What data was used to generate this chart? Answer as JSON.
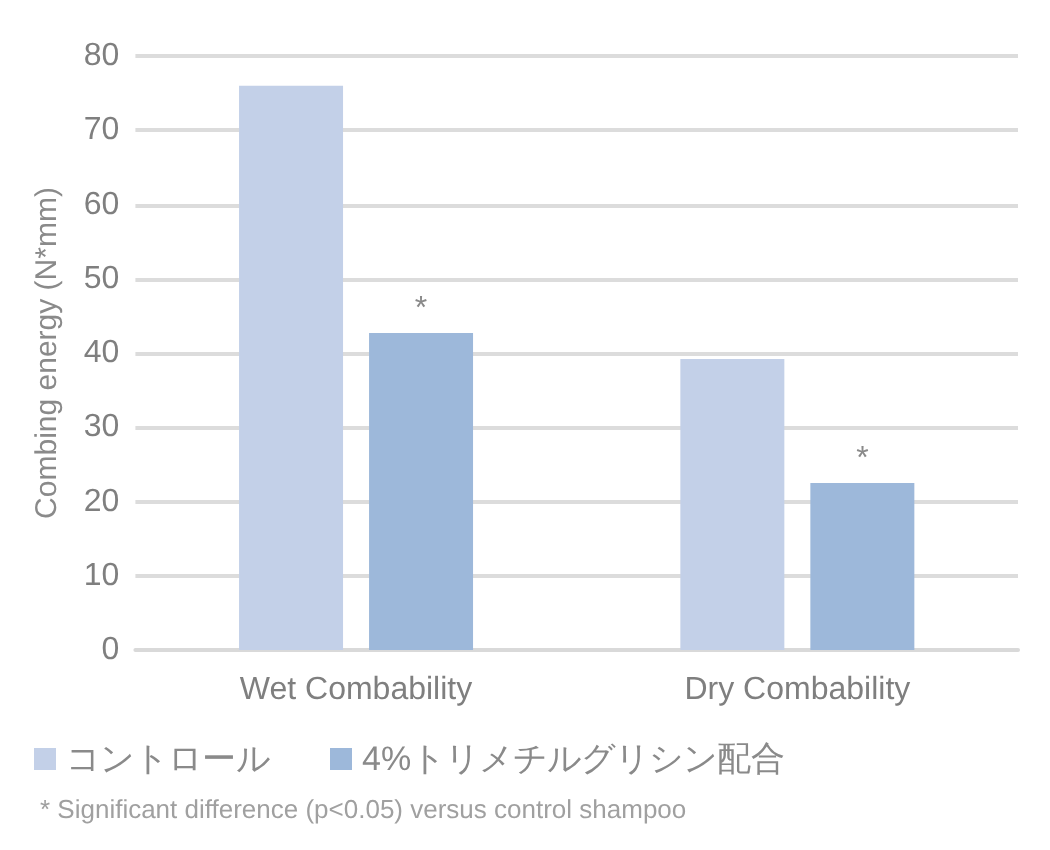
{
  "chart_data": {
    "type": "bar",
    "ylabel": "Combing energy (N*mm)",
    "categories": [
      "Wet Combability",
      "Dry Combability"
    ],
    "series": [
      {
        "name": "コントロール",
        "color": "#c3d0e8",
        "values": [
          76.0,
          39.2
        ]
      },
      {
        "name": "4%トリメチルグリシン配合",
        "color": "#9db8da",
        "values": [
          42.7,
          22.5
        ]
      }
    ],
    "ylim": [
      0,
      80
    ],
    "yticks": [
      0,
      10,
      20,
      30,
      40,
      50,
      60,
      70,
      80
    ],
    "grid": "y",
    "legend": "bottom",
    "annotations": [
      "*",
      "*",
      "* Significant difference (p<0.05) versus control shampoo"
    ]
  }
}
